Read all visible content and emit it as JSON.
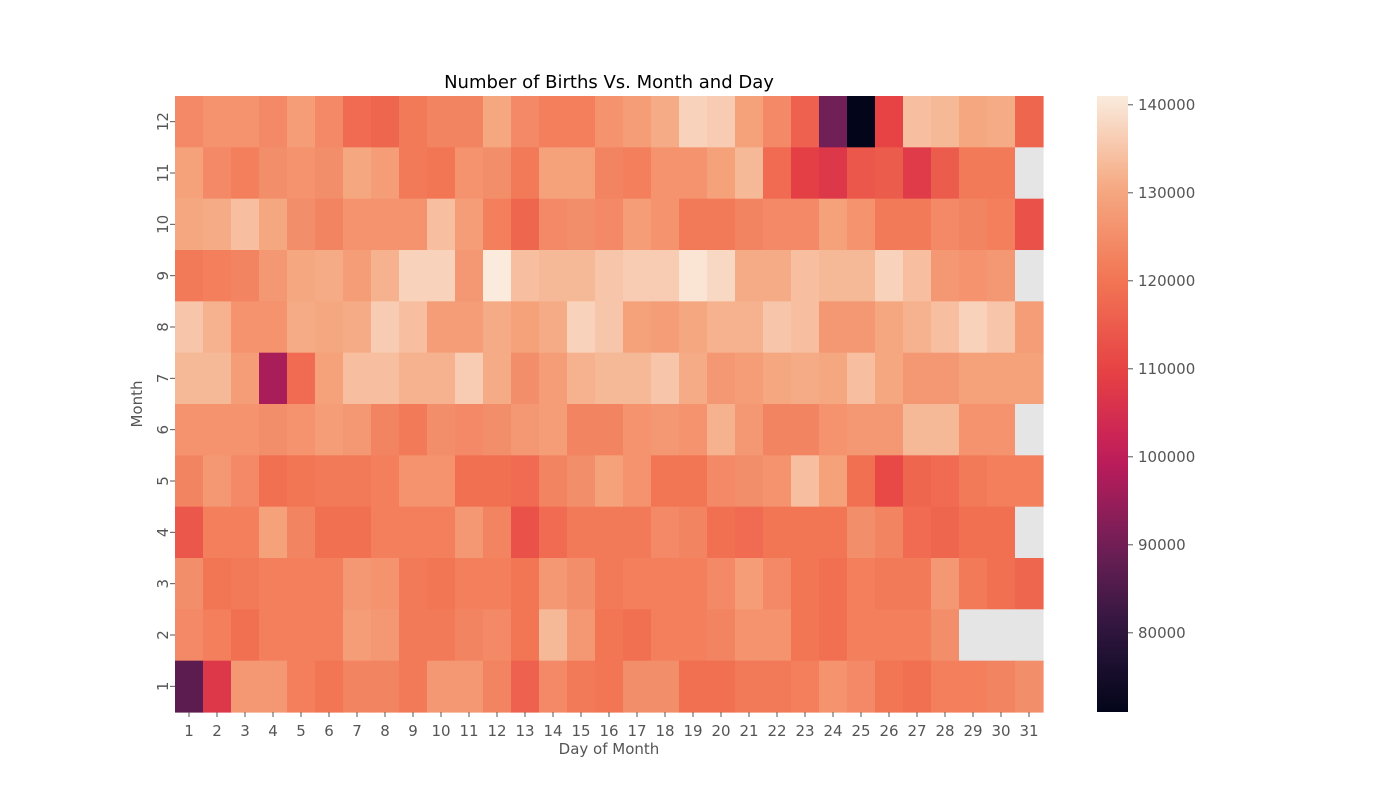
{
  "chart_data": {
    "type": "heatmap",
    "title": "Number of Births Vs. Month and Day",
    "xlabel": "Day of Month",
    "ylabel": "Month",
    "x": [
      1,
      2,
      3,
      4,
      5,
      6,
      7,
      8,
      9,
      10,
      11,
      12,
      13,
      14,
      15,
      16,
      17,
      18,
      19,
      20,
      21,
      22,
      23,
      24,
      25,
      26,
      27,
      28,
      29,
      30,
      31
    ],
    "y": [
      12,
      11,
      10,
      9,
      8,
      7,
      6,
      5,
      4,
      3,
      2,
      1
    ],
    "colormap": "rocket",
    "missing_color": "#e5e5e5",
    "vmin": 71000,
    "vmax": 141000,
    "colorbar_ticks": [
      80000,
      90000,
      100000,
      110000,
      120000,
      130000,
      140000
    ],
    "colorbar_tick_labels": [
      "80000",
      "90000",
      "100000",
      "110000",
      "120000",
      "130000",
      "140000"
    ],
    "values": [
      [
        124000,
        126000,
        126000,
        124000,
        128000,
        124000,
        118000,
        117000,
        121000,
        123000,
        123000,
        130000,
        124000,
        122000,
        122000,
        126000,
        128000,
        131000,
        137000,
        136000,
        129000,
        124000,
        116000,
        90000,
        71000,
        110000,
        134000,
        133000,
        130000,
        131000,
        117000
      ],
      [
        129000,
        124000,
        122000,
        125000,
        126000,
        125000,
        130000,
        128000,
        121000,
        120000,
        126000,
        125000,
        121000,
        129000,
        129000,
        123000,
        122000,
        126000,
        126000,
        129000,
        133000,
        118000,
        109000,
        107000,
        114000,
        115000,
        108000,
        115000,
        121000,
        121000,
        null
      ],
      [
        130000,
        131000,
        134000,
        130000,
        125000,
        123000,
        126000,
        126000,
        126000,
        134000,
        128000,
        122000,
        117000,
        124000,
        125000,
        124000,
        128000,
        126000,
        121000,
        121000,
        123000,
        124000,
        124000,
        129000,
        126000,
        121000,
        121000,
        124000,
        123000,
        122000,
        113000
      ],
      [
        121000,
        122000,
        123000,
        127000,
        130000,
        131000,
        128000,
        132000,
        137000,
        137000,
        127000,
        141000,
        134000,
        133000,
        133000,
        135000,
        136000,
        136000,
        140000,
        138000,
        131000,
        131000,
        134000,
        133000,
        133000,
        137000,
        134000,
        127000,
        126000,
        127000,
        null
      ],
      [
        135000,
        132000,
        126000,
        126000,
        131000,
        130000,
        131000,
        136000,
        134000,
        128000,
        128000,
        131000,
        129000,
        131000,
        137000,
        135000,
        129000,
        128000,
        130000,
        132000,
        132000,
        135000,
        134000,
        127000,
        127000,
        130000,
        132000,
        134000,
        137000,
        135000,
        128000
      ],
      [
        133000,
        133000,
        128000,
        97000,
        118000,
        129000,
        134000,
        134000,
        132000,
        132000,
        136000,
        131000,
        125000,
        128000,
        132000,
        133000,
        133000,
        135000,
        131000,
        127000,
        128000,
        130000,
        131000,
        130000,
        134000,
        130000,
        127000,
        127000,
        129000,
        129000,
        129000
      ],
      [
        126000,
        126000,
        126000,
        125000,
        126000,
        128000,
        127000,
        123000,
        121000,
        125000,
        124000,
        125000,
        127000,
        128000,
        123000,
        123000,
        126000,
        127000,
        126000,
        132000,
        127000,
        123000,
        123000,
        126000,
        127000,
        127000,
        133000,
        133000,
        126000,
        126000,
        null
      ],
      [
        123000,
        127000,
        124000,
        119000,
        120000,
        121000,
        121000,
        122000,
        126000,
        126000,
        119000,
        119000,
        118000,
        123000,
        125000,
        129000,
        126000,
        120000,
        120000,
        124000,
        125000,
        126000,
        134000,
        129000,
        119000,
        111000,
        117000,
        118000,
        121000,
        122000,
        122000
      ],
      [
        114000,
        122000,
        122000,
        129000,
        123000,
        119000,
        119000,
        122000,
        122000,
        122000,
        127000,
        123000,
        113000,
        118000,
        121000,
        121000,
        121000,
        124000,
        123000,
        119000,
        118000,
        120000,
        120000,
        120000,
        125000,
        123000,
        118000,
        117000,
        119000,
        119000,
        null
      ],
      [
        125000,
        120000,
        121000,
        122000,
        122000,
        122000,
        127000,
        126000,
        121000,
        120000,
        122000,
        122000,
        120000,
        127000,
        125000,
        121000,
        122000,
        122000,
        122000,
        124000,
        128000,
        124000,
        120000,
        119000,
        122000,
        121000,
        121000,
        127000,
        121000,
        119000,
        117000
      ],
      [
        124000,
        122000,
        119000,
        122000,
        122000,
        122000,
        128000,
        127000,
        121000,
        121000,
        123000,
        124000,
        120000,
        133000,
        127000,
        120000,
        119000,
        122000,
        122000,
        123000,
        126000,
        126000,
        120000,
        119000,
        122000,
        122000,
        122000,
        125000,
        null,
        null,
        null
      ],
      [
        87000,
        107000,
        127000,
        127000,
        122000,
        120000,
        123000,
        123000,
        121000,
        127000,
        127000,
        123000,
        116000,
        124000,
        121000,
        120000,
        125000,
        125000,
        119000,
        119000,
        121000,
        121000,
        122000,
        126000,
        124000,
        120000,
        119000,
        122000,
        122000,
        123000,
        125000
      ]
    ]
  }
}
